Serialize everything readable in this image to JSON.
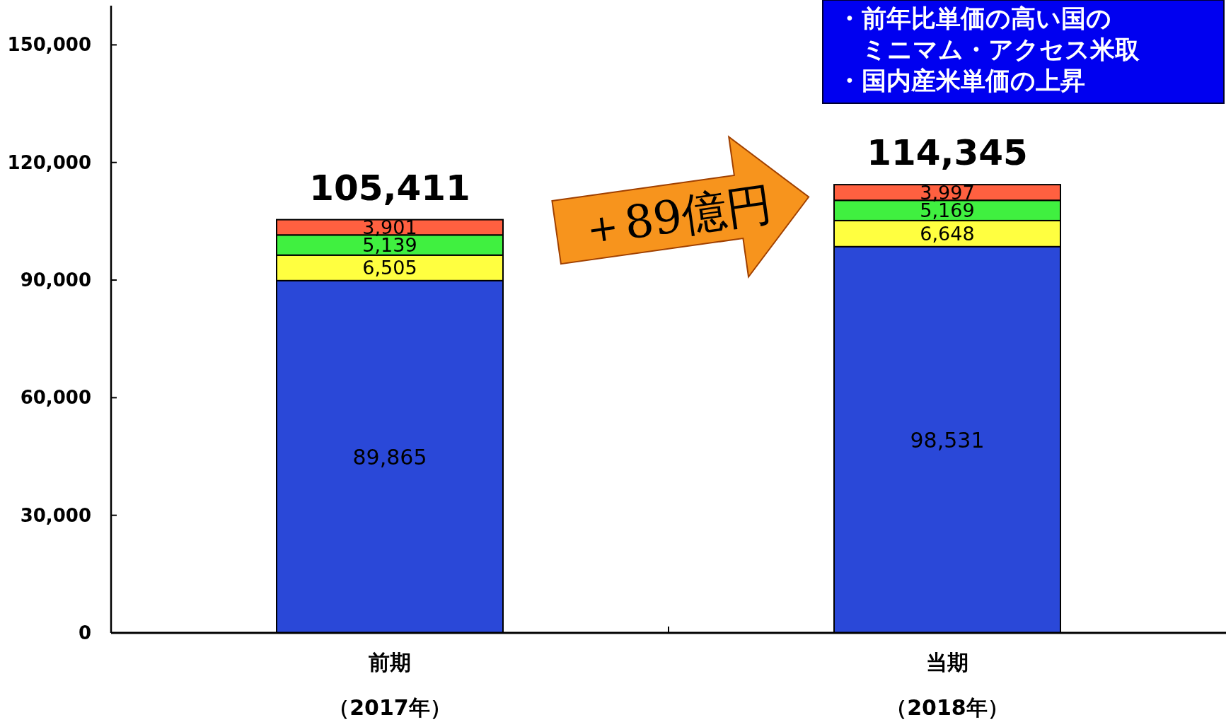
{
  "chart_data": {
    "type": "bar",
    "stacked": true,
    "categories": [
      "前期（2017年）",
      "当期（2018年）"
    ],
    "series": [
      {
        "color": "#2a48d8",
        "values": [
          89865,
          98531
        ]
      },
      {
        "color": "#ffff40",
        "values": [
          6505,
          6648
        ]
      },
      {
        "color": "#40f040",
        "values": [
          5139,
          5169
        ]
      },
      {
        "color": "#ff6040",
        "values": [
          3901,
          3997
        ]
      }
    ],
    "value_labels": [
      [
        "89,865",
        "98,531"
      ],
      [
        "6,505",
        "6,648"
      ],
      [
        "5,139",
        "5,169"
      ],
      [
        "3,901",
        "3,997"
      ]
    ],
    "totals": [
      "105,411",
      "114,345"
    ],
    "ylim": [
      0,
      160000
    ],
    "yticks": [
      {
        "value": 0,
        "label": "0"
      },
      {
        "value": 30000,
        "label": "30,000"
      },
      {
        "value": 60000,
        "label": "60,000"
      },
      {
        "value": 90000,
        "label": "90,000"
      },
      {
        "value": 120000,
        "label": "120,000"
      },
      {
        "value": 150000,
        "label": "150,000"
      }
    ],
    "grid": false,
    "annotations": [
      "・前年比単価の高い国のミニマム・アクセス米取",
      "・国内産米単価の上昇",
      "＋89億円"
    ]
  }
}
